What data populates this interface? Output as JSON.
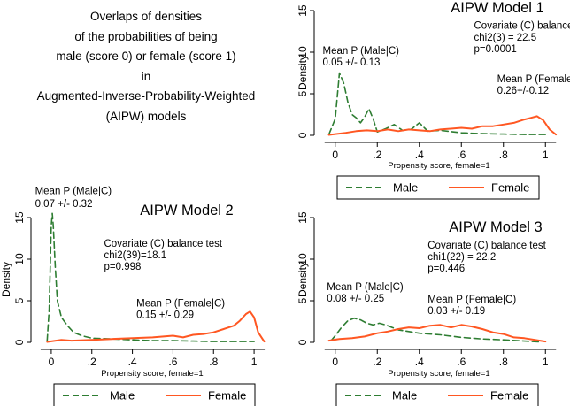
{
  "heading": {
    "lines": [
      "Overlaps of densities",
      "of the probabilities of being",
      "male (score 0) or female (score 1)",
      "in",
      "Augmented-Inverse-Probability-Weighted",
      "(AIPW) models"
    ]
  },
  "colors": {
    "male": "#2e7d32",
    "female": "#ff5722",
    "axis": "#000000"
  },
  "chart_data": [
    {
      "type": "line",
      "title": "AIPW Model 1",
      "xlabel": "Propensity score, female=1",
      "ylabel": "Density",
      "xlim": [
        -0.1,
        1.1
      ],
      "ylim": [
        0,
        15
      ],
      "xticks": [
        0,
        0.2,
        0.4,
        0.6,
        0.8,
        1
      ],
      "xticklabels": [
        "0",
        ".2",
        ".4",
        ".6",
        ".8",
        "1"
      ],
      "yticks": [
        0,
        5,
        10,
        15
      ],
      "yticklabels": [
        "0",
        "5",
        "10",
        "15"
      ],
      "annotations": [
        {
          "text": "Covariate (C) balance test",
          "x": 0.66,
          "y": 12.8
        },
        {
          "text": "chi2(3) = 22.5",
          "x": 0.66,
          "y": 11.4
        },
        {
          "text": "p=0.0001",
          "x": 0.66,
          "y": 10.0
        },
        {
          "text": "Mean P (Male|C)",
          "x": -0.06,
          "y": 9.8
        },
        {
          "text": "0.05 +/- 0.13",
          "x": -0.06,
          "y": 8.4
        },
        {
          "text": "Mean P (Female|C)",
          "x": 0.77,
          "y": 6.4
        },
        {
          "text": "0.26+/-0.12",
          "x": 0.77,
          "y": 5.0
        }
      ],
      "legend": {
        "position": "bottom",
        "labels": [
          "Male",
          "Female"
        ]
      },
      "series": [
        {
          "name": "Male",
          "style": "dashed",
          "x": [
            -0.03,
            0.0,
            0.02,
            0.04,
            0.06,
            0.08,
            0.1,
            0.12,
            0.14,
            0.16,
            0.18,
            0.2,
            0.24,
            0.28,
            0.32,
            0.36,
            0.4,
            0.44,
            0.5,
            0.6,
            0.7,
            0.8,
            0.9,
            1.0
          ],
          "y": [
            0.1,
            2.0,
            7.5,
            6.3,
            4.0,
            2.5,
            2.1,
            1.5,
            2.2,
            3.2,
            2.0,
            0.4,
            0.8,
            1.3,
            0.6,
            0.7,
            1.5,
            0.5,
            0.6,
            0.3,
            0.2,
            0.15,
            0.1,
            0.1
          ]
        },
        {
          "name": "Female",
          "style": "solid",
          "x": [
            -0.03,
            0.05,
            0.1,
            0.15,
            0.2,
            0.25,
            0.3,
            0.35,
            0.4,
            0.45,
            0.5,
            0.55,
            0.6,
            0.65,
            0.7,
            0.75,
            0.8,
            0.85,
            0.9,
            0.93,
            0.96,
            0.99,
            1.02,
            1.05
          ],
          "y": [
            0.05,
            0.3,
            0.5,
            0.6,
            0.5,
            0.7,
            0.5,
            0.7,
            0.6,
            0.5,
            0.7,
            0.8,
            0.9,
            0.8,
            1.1,
            1.1,
            1.3,
            1.5,
            1.9,
            2.1,
            2.3,
            1.8,
            0.7,
            0.1
          ]
        }
      ]
    },
    {
      "type": "line",
      "title": "AIPW Model 2",
      "xlabel": "Propensity score, female=1",
      "ylabel": "Density",
      "xlim": [
        -0.1,
        1.1
      ],
      "ylim": [
        0,
        15
      ],
      "xticks": [
        0,
        0.2,
        0.4,
        0.6,
        0.8,
        1
      ],
      "xticklabels": [
        "0",
        ".2",
        ".4",
        ".6",
        ".8",
        "1"
      ],
      "yticks": [
        0,
        5,
        10,
        15
      ],
      "yticklabels": [
        "0",
        "5",
        "10",
        "15"
      ],
      "annotations": [
        {
          "text": "Mean P (Male|C)",
          "x": -0.08,
          "y": 17.8
        },
        {
          "text": "0.07 +/- 0.32",
          "x": -0.08,
          "y": 16.3
        },
        {
          "text": "Covariate (C) balance test",
          "x": 0.26,
          "y": 11.5
        },
        {
          "text": "chi2(39)=18.1",
          "x": 0.26,
          "y": 10.1
        },
        {
          "text": "p=0.998",
          "x": 0.26,
          "y": 8.7
        },
        {
          "text": "Mean P (Female|C)",
          "x": 0.42,
          "y": 4.3
        },
        {
          "text": "0.15 +/- 0.29",
          "x": 0.42,
          "y": 2.9
        }
      ],
      "legend": {
        "position": "bottom",
        "labels": [
          "Male",
          "Female"
        ]
      },
      "series": [
        {
          "name": "Male",
          "style": "dashed",
          "x": [
            -0.02,
            -0.01,
            0.0,
            0.005,
            0.01,
            0.02,
            0.03,
            0.05,
            0.08,
            0.11,
            0.15,
            0.2,
            0.3,
            0.4,
            0.5,
            0.6,
            0.7,
            0.8,
            0.9,
            1.0
          ],
          "y": [
            0.2,
            4.0,
            14.0,
            15.5,
            14.0,
            9.0,
            5.0,
            3.0,
            2.0,
            1.2,
            0.8,
            0.5,
            0.4,
            0.3,
            0.2,
            0.2,
            0.15,
            0.1,
            0.1,
            0.1
          ]
        },
        {
          "name": "Female",
          "style": "solid",
          "x": [
            -0.02,
            0.05,
            0.1,
            0.2,
            0.3,
            0.4,
            0.5,
            0.6,
            0.65,
            0.7,
            0.75,
            0.8,
            0.85,
            0.9,
            0.93,
            0.96,
            0.98,
            1.0,
            1.02,
            1.05
          ],
          "y": [
            0.05,
            0.3,
            0.2,
            0.3,
            0.4,
            0.5,
            0.6,
            0.8,
            0.6,
            0.9,
            1.0,
            1.2,
            1.6,
            2.0,
            2.6,
            3.4,
            3.7,
            3.0,
            1.2,
            0.1
          ]
        }
      ]
    },
    {
      "type": "line",
      "title": "AIPW Model 3",
      "xlabel": "Propensity score, female=1",
      "ylabel": "Density",
      "xlim": [
        -0.1,
        1.1
      ],
      "ylim": [
        0,
        15
      ],
      "xticks": [
        0,
        0.2,
        0.4,
        0.6,
        0.8,
        1
      ],
      "xticklabels": [
        "0",
        ".2",
        ".4",
        ".6",
        ".8",
        "1"
      ],
      "yticks": [
        0,
        5,
        10,
        15
      ],
      "yticklabels": [
        "0",
        "5",
        "10",
        "15"
      ],
      "annotations": [
        {
          "text": "Covariate (C) balance test",
          "x": 0.44,
          "y": 11.3
        },
        {
          "text": "chi1(22) = 22.2",
          "x": 0.44,
          "y": 9.9
        },
        {
          "text": "p=0.446",
          "x": 0.44,
          "y": 8.5
        },
        {
          "text": "Mean P (Male|C)",
          "x": -0.04,
          "y": 6.3
        },
        {
          "text": "0.08 +/- 0.25",
          "x": -0.04,
          "y": 4.9
        },
        {
          "text": "Mean P (Female|C)",
          "x": 0.44,
          "y": 4.8
        },
        {
          "text": "0.03 +/- 0.19",
          "x": 0.44,
          "y": 3.4
        }
      ],
      "legend": {
        "position": "bottom",
        "labels": [
          "Male",
          "Female"
        ]
      },
      "series": [
        {
          "name": "Male",
          "style": "dashed",
          "x": [
            -0.02,
            0.0,
            0.03,
            0.06,
            0.09,
            0.12,
            0.15,
            0.18,
            0.21,
            0.24,
            0.27,
            0.3,
            0.35,
            0.4,
            0.45,
            0.5,
            0.6,
            0.7,
            0.8,
            0.9,
            0.97
          ],
          "y": [
            0.2,
            0.8,
            1.8,
            2.6,
            2.9,
            2.7,
            2.3,
            2.1,
            2.3,
            2.1,
            1.8,
            1.5,
            1.3,
            1.1,
            1.0,
            0.9,
            0.6,
            0.4,
            0.3,
            0.15,
            0.05
          ]
        },
        {
          "name": "Female",
          "style": "solid",
          "x": [
            -0.03,
            0.02,
            0.08,
            0.14,
            0.2,
            0.25,
            0.3,
            0.35,
            0.4,
            0.45,
            0.5,
            0.55,
            0.6,
            0.65,
            0.7,
            0.75,
            0.8,
            0.85,
            0.9,
            0.95,
            1.0
          ],
          "y": [
            0.2,
            0.4,
            0.5,
            0.7,
            1.1,
            1.3,
            1.6,
            1.8,
            1.7,
            2.0,
            2.1,
            1.8,
            2.1,
            1.9,
            1.6,
            1.2,
            1.0,
            0.6,
            0.5,
            0.3,
            0.1
          ]
        }
      ]
    }
  ]
}
